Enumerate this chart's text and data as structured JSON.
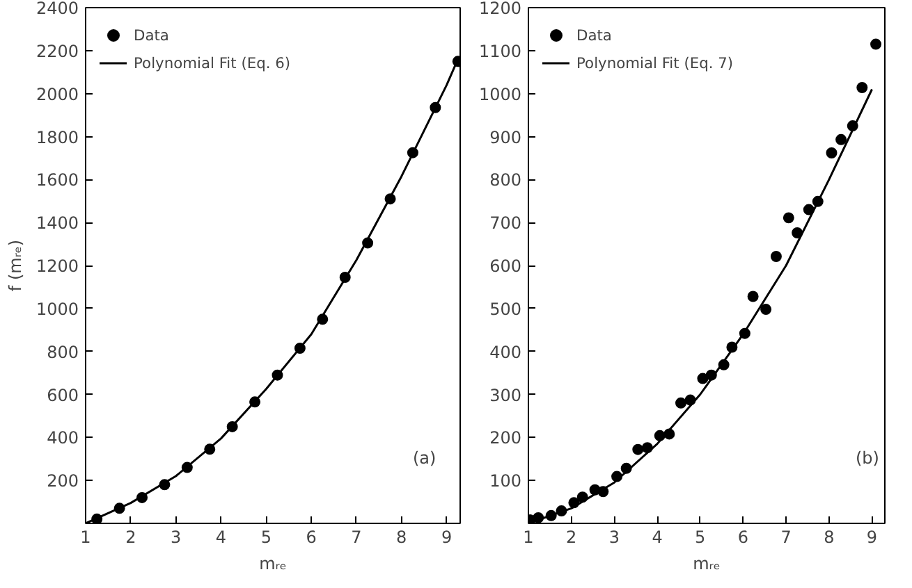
{
  "chart_data": [
    {
      "type": "scatter",
      "xlabel": "mᵣₑ",
      "ylabel": "f (mᵣₑ)",
      "xlim": [
        1,
        9.3
      ],
      "ylim": [
        0,
        2400
      ],
      "xticks": [
        1,
        2,
        3,
        4,
        5,
        6,
        7,
        8,
        9
      ],
      "yticks": [
        200,
        400,
        600,
        800,
        1000,
        1200,
        1400,
        1600,
        1800,
        2000,
        2200,
        2400
      ],
      "grid": false,
      "legend": "top left",
      "annotations": [
        "(a)"
      ],
      "series": [
        {
          "name": "Data",
          "marker": "circle",
          "color": "#000000",
          "x": [
            1.25,
            1.75,
            2.25,
            2.75,
            3.25,
            3.75,
            4.25,
            4.75,
            5.25,
            5.75,
            6.25,
            6.75,
            7.25,
            7.75,
            8.25,
            8.75,
            9.25
          ],
          "values": [
            20,
            70,
            120,
            180,
            260,
            345,
            450,
            565,
            690,
            815,
            950,
            1145,
            1305,
            1510,
            1725,
            1935,
            2150
          ]
        },
        {
          "name": "Polynomial Fit (Eq. 6)",
          "type": "line",
          "line_style": "solid",
          "color": "#000000",
          "x": [
            1,
            2,
            3,
            4,
            5,
            6,
            7,
            8,
            9,
            9.25
          ],
          "values": [
            0,
            95,
            220,
            395,
            625,
            880,
            1225,
            1615,
            2040,
            2160
          ]
        }
      ]
    },
    {
      "type": "scatter",
      "xlabel": "mᵣₑ",
      "xlim": [
        1,
        9.3
      ],
      "ylim": [
        0,
        1200
      ],
      "xticks": [
        1,
        2,
        3,
        4,
        5,
        6,
        7,
        8,
        9
      ],
      "yticks": [
        100,
        200,
        300,
        400,
        500,
        600,
        700,
        800,
        900,
        1000,
        1100,
        1200
      ],
      "grid": false,
      "legend": "top left",
      "annotations": [
        "(b)"
      ],
      "series": [
        {
          "name": "Data",
          "marker": "circle",
          "color": "#000000",
          "x": [
            1.04,
            1.23,
            1.53,
            1.77,
            2.06,
            2.26,
            2.55,
            2.74,
            3.06,
            3.28,
            3.55,
            3.77,
            4.06,
            4.28,
            4.55,
            4.77,
            5.06,
            5.26,
            5.55,
            5.74,
            6.04,
            6.23,
            6.53,
            6.77,
            7.06,
            7.26,
            7.53,
            7.74,
            8.06,
            8.28,
            8.55,
            8.77,
            9.09
          ],
          "values": [
            8,
            13,
            18,
            29,
            48,
            61,
            78,
            74,
            109,
            128,
            172,
            176,
            204,
            208,
            280,
            287,
            337,
            345,
            369,
            410,
            442,
            528,
            498,
            621,
            711,
            676,
            730,
            749,
            862,
            893,
            925,
            1014,
            1115
          ]
        },
        {
          "name": "Polynomial Fit (Eq. 7)",
          "type": "line",
          "line_style": "solid",
          "color": "#000000",
          "x": [
            1,
            2,
            3,
            4,
            5,
            6,
            7,
            8,
            9
          ],
          "values": [
            0,
            35,
            95,
            185,
            300,
            440,
            600,
            800,
            1010
          ]
        }
      ]
    }
  ]
}
